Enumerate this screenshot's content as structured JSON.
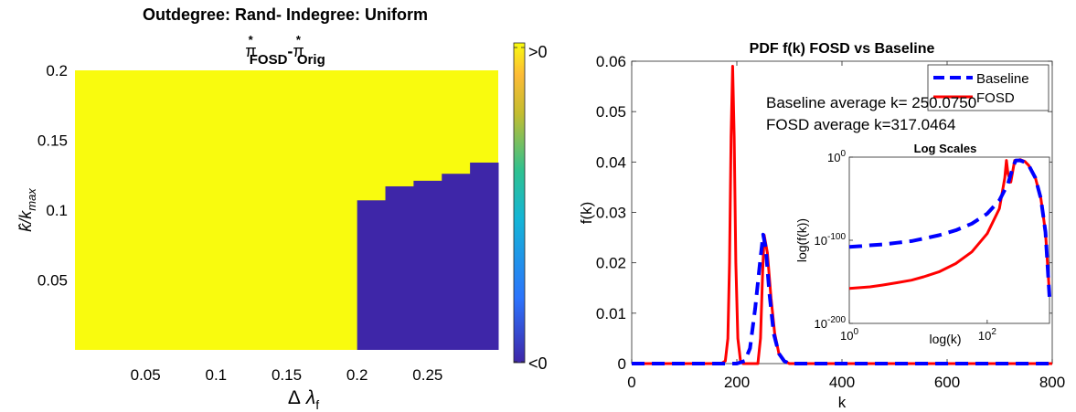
{
  "chart_data": [
    {
      "type": "heatmap",
      "title": "Outdegree: Rand- Indegree: Uniform",
      "subtitle": {
        "pi1": "π",
        "sup1": "*",
        "sub1": "FOSD",
        "dash": "-",
        "pi2": "π",
        "sup2": "*",
        "sub2": "Orig"
      },
      "xlabel": {
        "delta": "Δ",
        "lambda": "λ",
        "sub": "f"
      },
      "ylabel": "k̂/k_max",
      "xlim": [
        0,
        0.3
      ],
      "ylim": [
        0,
        0.2
      ],
      "x_ticks": [
        "0.05",
        "0.1",
        "0.15",
        "0.2",
        "0.25"
      ],
      "x_tick_values": [
        0.05,
        0.1,
        0.15,
        0.2,
        0.25
      ],
      "y_ticks": [
        "0.05",
        "0.1",
        "0.15",
        "0.2"
      ],
      "y_tick_values": [
        0.05,
        0.1,
        0.15,
        0.2
      ],
      "colorbar": {
        "top_label": ">0",
        "bottom_label": "<0"
      },
      "colors": {
        "positive": "#f9fb0e",
        "negative": "#3e26a8"
      },
      "negative_region_steps": [
        {
          "x_from": 0.2,
          "x_to": 0.22,
          "y_top": 0.107
        },
        {
          "x_from": 0.22,
          "x_to": 0.24,
          "y_top": 0.117
        },
        {
          "x_from": 0.24,
          "x_to": 0.26,
          "y_top": 0.121
        },
        {
          "x_from": 0.26,
          "x_to": 0.28,
          "y_top": 0.126
        },
        {
          "x_from": 0.28,
          "x_to": 0.3,
          "y_top": 0.134
        }
      ]
    },
    {
      "type": "line",
      "title": "PDF f(k) FOSD vs Baseline",
      "xlabel": "k",
      "ylabel": "f(k)",
      "xlim": [
        0,
        800
      ],
      "ylim": [
        0,
        0.06
      ],
      "x_ticks": [
        "0",
        "200",
        "400",
        "600",
        "800"
      ],
      "x_tick_values": [
        0,
        200,
        400,
        600,
        800
      ],
      "y_ticks": [
        "0",
        "0.01",
        "0.02",
        "0.03",
        "0.04",
        "0.05",
        "0.06"
      ],
      "y_tick_values": [
        0,
        0.01,
        0.02,
        0.03,
        0.04,
        0.05,
        0.06
      ],
      "legend": {
        "placement": "top-right"
      },
      "annotations": [
        "Baseline average k= 250.0750",
        "FOSD average k=317.0464"
      ],
      "series": [
        {
          "name": "Baseline",
          "color": "#0000ff",
          "style": "dashed",
          "x": [
            0,
            180,
            200,
            215,
            225,
            235,
            245,
            250,
            255,
            262,
            270,
            280,
            290,
            300,
            320,
            800
          ],
          "y": [
            0,
            0,
            0,
            0.0005,
            0.003,
            0.011,
            0.021,
            0.0256,
            0.023,
            0.014,
            0.006,
            0.002,
            0.0005,
            0,
            0,
            0
          ]
        },
        {
          "name": "FOSD",
          "color": "#ff0000",
          "style": "solid",
          "x": [
            0,
            170,
            178,
            183,
            186,
            189,
            192,
            195,
            198,
            202,
            207,
            212,
            240,
            245,
            249,
            252,
            258,
            265,
            272,
            280,
            290,
            300,
            800
          ],
          "y": [
            0,
            0,
            0.0005,
            0.005,
            0.02,
            0.045,
            0.059,
            0.045,
            0.02,
            0.005,
            0.0005,
            0,
            0,
            0.005,
            0.018,
            0.0255,
            0.022,
            0.013,
            0.006,
            0.002,
            0.0005,
            0,
            0
          ]
        }
      ],
      "inset": {
        "type": "line",
        "title": "Log Scales",
        "xlabel": "log(k)",
        "ylabel": "log(f(k))",
        "x_scale": "log",
        "y_scale": "log",
        "xlim": [
          1,
          800
        ],
        "ylim_exponents": [
          -200,
          0
        ],
        "x_ticks": [
          {
            "base": "10",
            "exp": "0",
            "value": 1
          },
          {
            "base": "10",
            "exp": "2",
            "value": 100
          }
        ],
        "y_ticks": [
          {
            "base": "10",
            "exp": "0",
            "value_exp": 0
          },
          {
            "base": "10",
            "exp": "-100",
            "value_exp": -100
          },
          {
            "base": "10",
            "exp": "-200",
            "value_exp": -200
          }
        ],
        "series": [
          {
            "name": "Baseline",
            "color": "#0000ff",
            "style": "dashed",
            "k": [
              1,
              1.5,
              2,
              3,
              5,
              8,
              12,
              20,
              35,
              60,
              100,
              150,
              200,
              240,
              260,
              300,
              350,
              400,
              500,
              600,
              700,
              800
            ],
            "log10_f": [
              -108,
              -107,
              -106,
              -105,
              -103,
              -101,
              -98,
              -94,
              -88,
              -80,
              -68,
              -52,
              -32,
              -10,
              -4,
              -4,
              -6,
              -10,
              -25,
              -50,
              -90,
              -168
            ]
          },
          {
            "name": "FOSD",
            "color": "#ff0000",
            "style": "solid",
            "k": [
              1,
              2,
              3,
              5,
              8,
              12,
              20,
              35,
              60,
              100,
              150,
              180,
              190,
              200,
              220,
              250,
              270,
              300,
              350,
              400,
              500,
              600,
              700,
              800
            ],
            "log10_f": [
              -158,
              -156,
              -154,
              -151,
              -148,
              -144,
              -138,
              -128,
              -114,
              -92,
              -62,
              -25,
              -4,
              -20,
              -30,
              -4,
              -4,
              -3,
              -5,
              -10,
              -25,
              -50,
              -90,
              -165
            ]
          }
        ]
      }
    }
  ]
}
